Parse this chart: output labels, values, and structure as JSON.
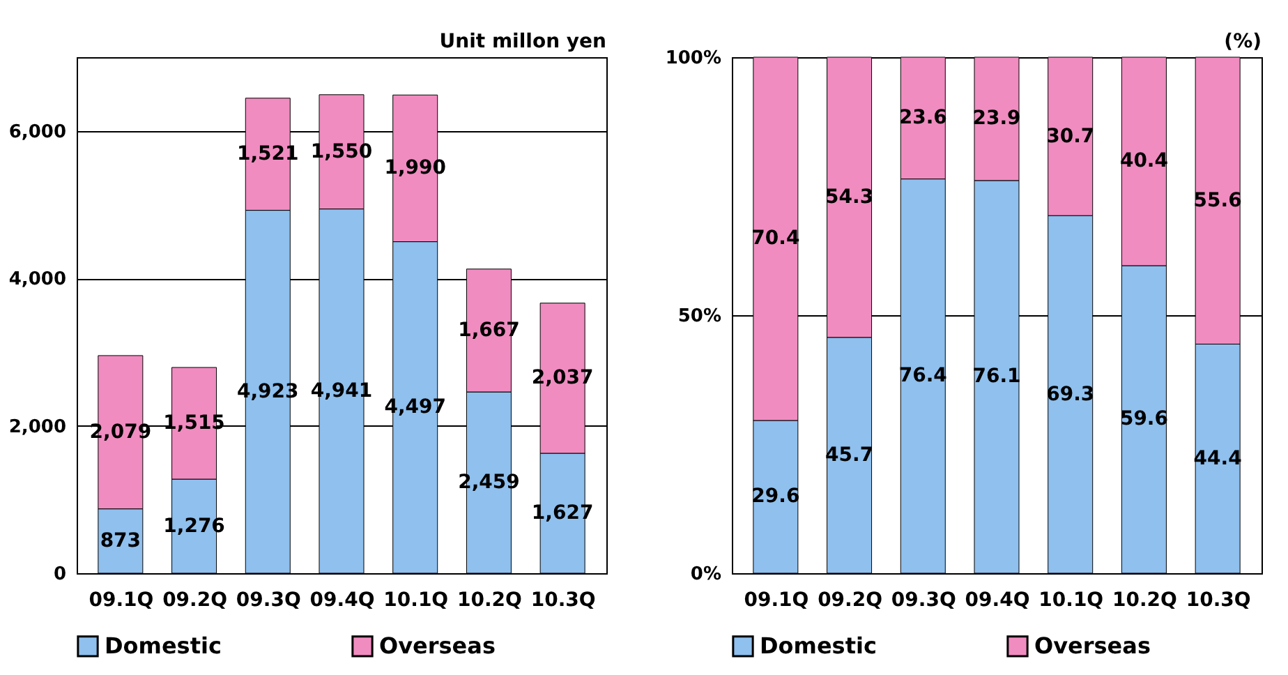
{
  "chart_data": [
    {
      "type": "bar",
      "stacked": true,
      "categories": [
        "09.1Q",
        "09.2Q",
        "09.3Q",
        "09.4Q",
        "10.1Q",
        "10.2Q",
        "10.3Q"
      ],
      "series": [
        {
          "name": "Domestic",
          "color": "#8fc0ee",
          "values": [
            873,
            1276,
            4923,
            4941,
            4497,
            2459,
            1627
          ],
          "value_labels": [
            "873",
            "1,276",
            "4,923",
            "4,941",
            "4,497",
            "2,459",
            "1,627"
          ]
        },
        {
          "name": "Overseas",
          "color": "#f08cc0",
          "values": [
            2079,
            1515,
            1521,
            1550,
            1990,
            1667,
            2037
          ],
          "value_labels": [
            "2,079",
            "1,515",
            "1,521",
            "1,550",
            "1,990",
            "1,667",
            "2,037"
          ]
        }
      ],
      "ylim": [
        0,
        7000
      ],
      "yticks": [
        0,
        {
          "value": 2000,
          "label": "2,000"
        },
        {
          "value": 4000,
          "label": "4,000"
        },
        {
          "value": 6000,
          "label": "6,000"
        }
      ],
      "grid": "y",
      "legend": "bottom",
      "annotations": [
        "Unit millon yen"
      ]
    },
    {
      "type": "bar",
      "stacked": true,
      "categories": [
        "09.1Q",
        "09.2Q",
        "09.3Q",
        "09.4Q",
        "10.1Q",
        "10.2Q",
        "10.3Q"
      ],
      "series": [
        {
          "name": "Domestic",
          "color": "#8fc0ee",
          "values": [
            29.6,
            45.7,
            76.4,
            76.1,
            69.3,
            59.6,
            44.4
          ]
        },
        {
          "name": "Overseas",
          "color": "#f08cc0",
          "values": [
            70.4,
            54.3,
            23.6,
            23.9,
            30.7,
            40.4,
            55.6
          ]
        }
      ],
      "ylim": [
        0,
        100
      ],
      "yticks": [
        {
          "value": 0,
          "label": "0%"
        },
        {
          "value": 50,
          "label": "50%"
        },
        {
          "value": 100,
          "label": "100%"
        }
      ],
      "grid": "y",
      "legend": "bottom",
      "data_labels": true,
      "annotations": [
        "(%)"
      ]
    }
  ]
}
